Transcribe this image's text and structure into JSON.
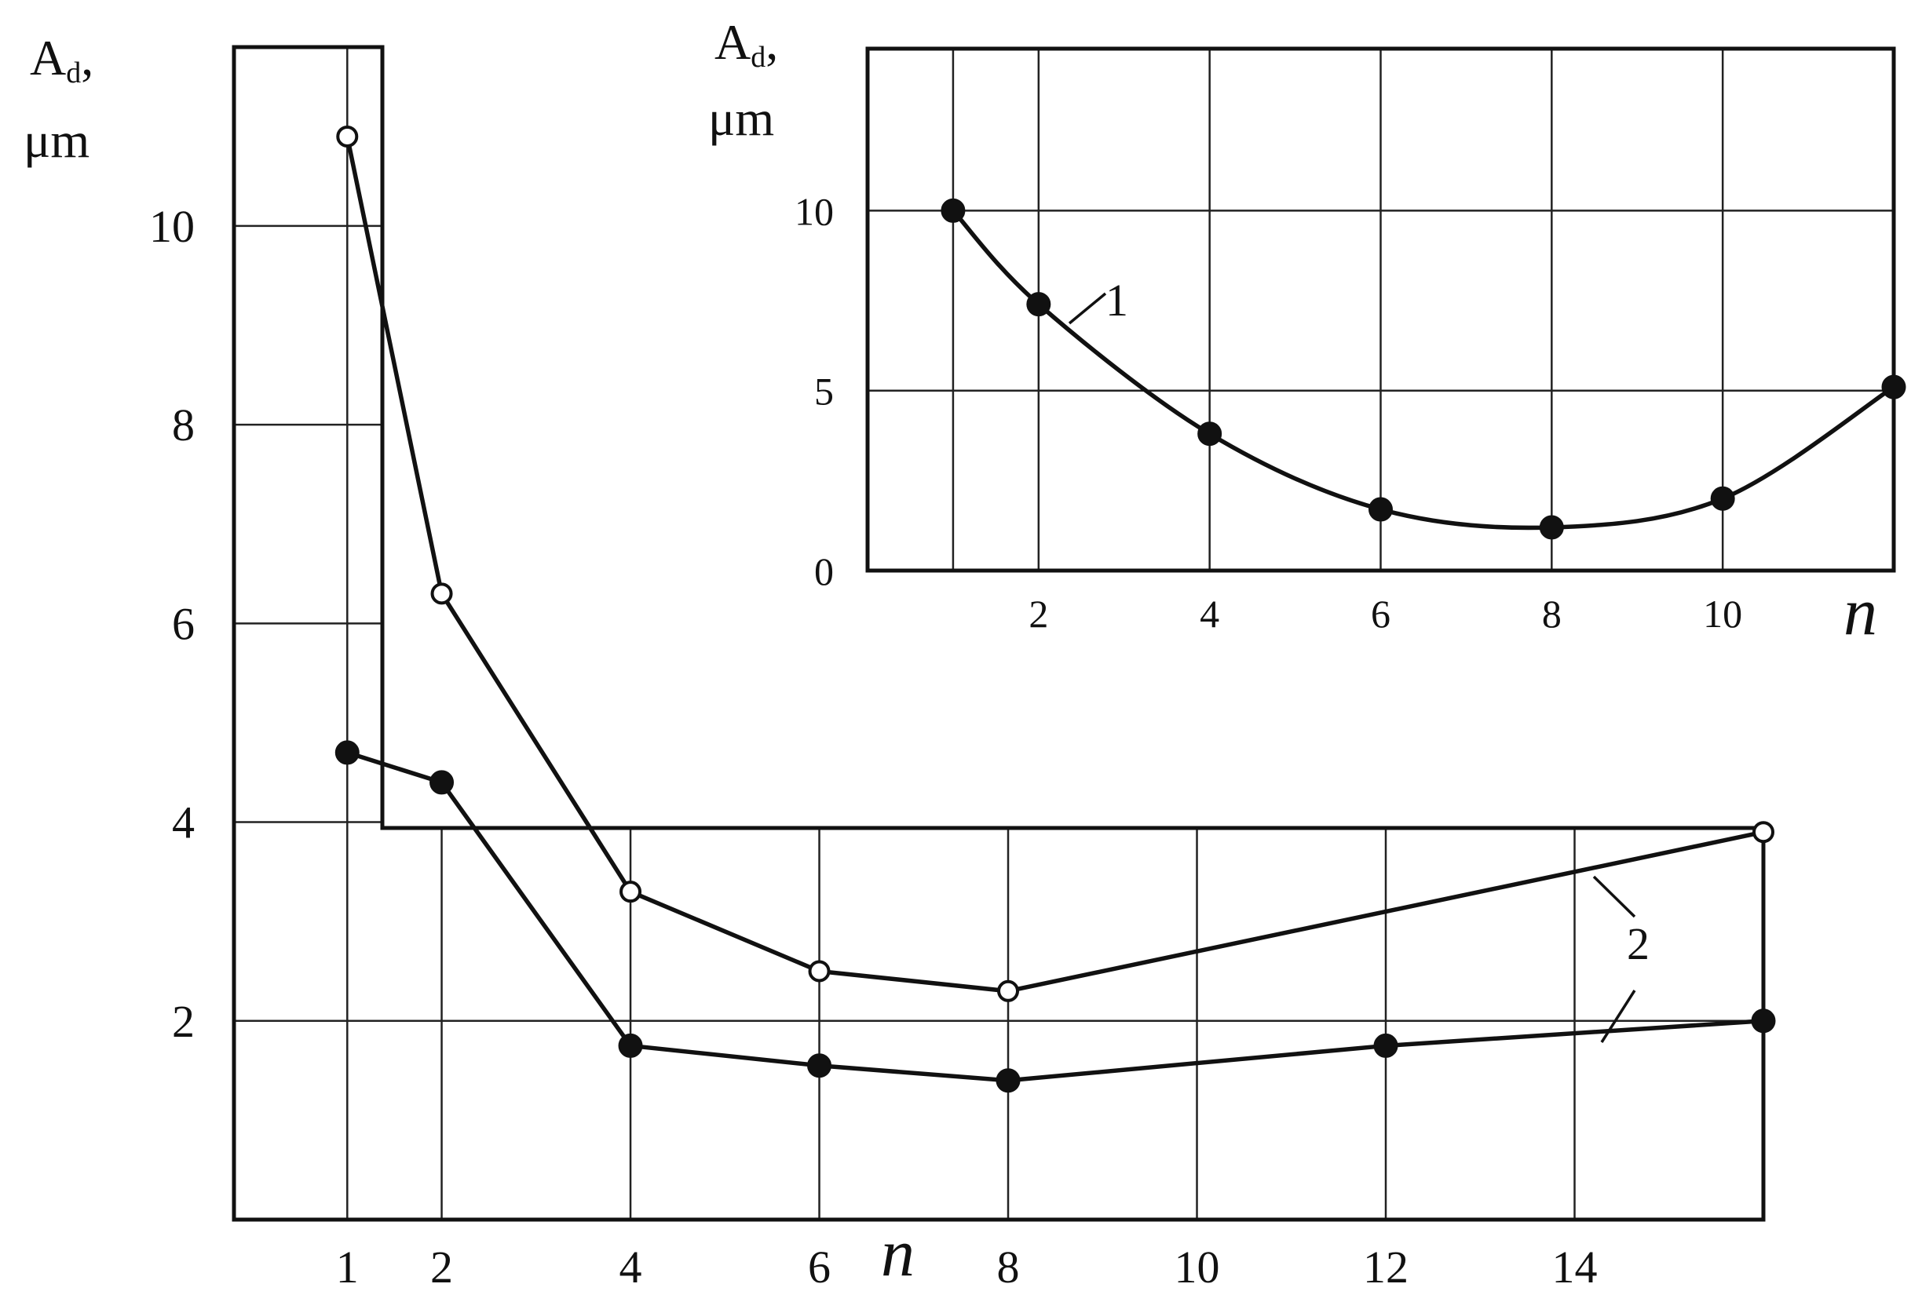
{
  "chart_data": [
    {
      "type": "line",
      "panel": "main",
      "ylabel": "A",
      "ylabel_sub": "d",
      "ylabel_suffix": ",",
      "yunit": "μm",
      "xlabel": "n",
      "x_ticks": [
        1,
        2,
        4,
        6,
        8,
        10,
        12,
        14
      ],
      "y_ticks": [
        2,
        4,
        6,
        8,
        10
      ],
      "xlim": [
        -0.2,
        16
      ],
      "ylim": [
        0,
        11.8
      ],
      "grid": true,
      "series": [
        {
          "name": "2",
          "marker": "open-circle",
          "x": [
            1,
            2,
            4,
            6,
            8,
            16
          ],
          "y": [
            10.9,
            6.3,
            3.3,
            2.5,
            2.3,
            3.9
          ]
        },
        {
          "name": "2",
          "marker": "filled-circle",
          "x": [
            1,
            2,
            4,
            6,
            8,
            12,
            16
          ],
          "y": [
            4.7,
            4.4,
            1.75,
            1.55,
            1.4,
            1.75,
            2.0
          ]
        }
      ]
    },
    {
      "type": "line",
      "panel": "inset",
      "ylabel": "A",
      "ylabel_sub": "d",
      "ylabel_suffix": ",",
      "yunit": "μm",
      "xlabel": "n",
      "x_ticks": [
        2,
        4,
        6,
        8,
        10
      ],
      "y_ticks": [
        0,
        5,
        10
      ],
      "xlim": [
        0,
        12
      ],
      "ylim": [
        0,
        14.5
      ],
      "grid": true,
      "series": [
        {
          "name": "1",
          "marker": "filled-circle",
          "x": [
            1,
            2,
            4,
            6,
            8,
            10,
            12
          ],
          "y": [
            10.0,
            7.4,
            3.8,
            1.7,
            1.2,
            2.0,
            5.1
          ]
        }
      ]
    }
  ]
}
